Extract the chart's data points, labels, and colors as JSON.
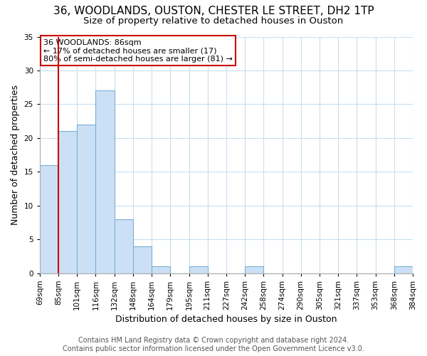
{
  "title": "36, WOODLANDS, OUSTON, CHESTER LE STREET, DH2 1TP",
  "subtitle": "Size of property relative to detached houses in Ouston",
  "xlabel": "Distribution of detached houses by size in Ouston",
  "ylabel": "Number of detached properties",
  "bin_edges": [
    "69sqm",
    "85sqm",
    "101sqm",
    "116sqm",
    "132sqm",
    "148sqm",
    "164sqm",
    "179sqm",
    "195sqm",
    "211sqm",
    "227sqm",
    "242sqm",
    "258sqm",
    "274sqm",
    "290sqm",
    "305sqm",
    "321sqm",
    "337sqm",
    "353sqm",
    "368sqm",
    "384sqm"
  ],
  "values": [
    16,
    21,
    22,
    27,
    8,
    4,
    1,
    0,
    1,
    0,
    0,
    1,
    0,
    0,
    0,
    0,
    0,
    0,
    0,
    1
  ],
  "bar_color": "#cce0f5",
  "bar_edge_color": "#7bafd4",
  "vline_color": "#cc0000",
  "vline_pos": 1,
  "annotation_text": "36 WOODLANDS: 86sqm\n← 17% of detached houses are smaller (17)\n80% of semi-detached houses are larger (81) →",
  "annotation_box_facecolor": "#ffffff",
  "annotation_box_edgecolor": "#cc0000",
  "ylim": [
    0,
    35
  ],
  "yticks": [
    0,
    5,
    10,
    15,
    20,
    25,
    30,
    35
  ],
  "footer_line1": "Contains HM Land Registry data © Crown copyright and database right 2024.",
  "footer_line2": "Contains public sector information licensed under the Open Government Licence v3.0.",
  "background_color": "#ffffff",
  "grid_color": "#c8dff0",
  "title_fontsize": 11,
  "subtitle_fontsize": 9.5,
  "axis_label_fontsize": 9,
  "tick_fontsize": 7.5,
  "annotation_fontsize": 8,
  "footer_fontsize": 7
}
